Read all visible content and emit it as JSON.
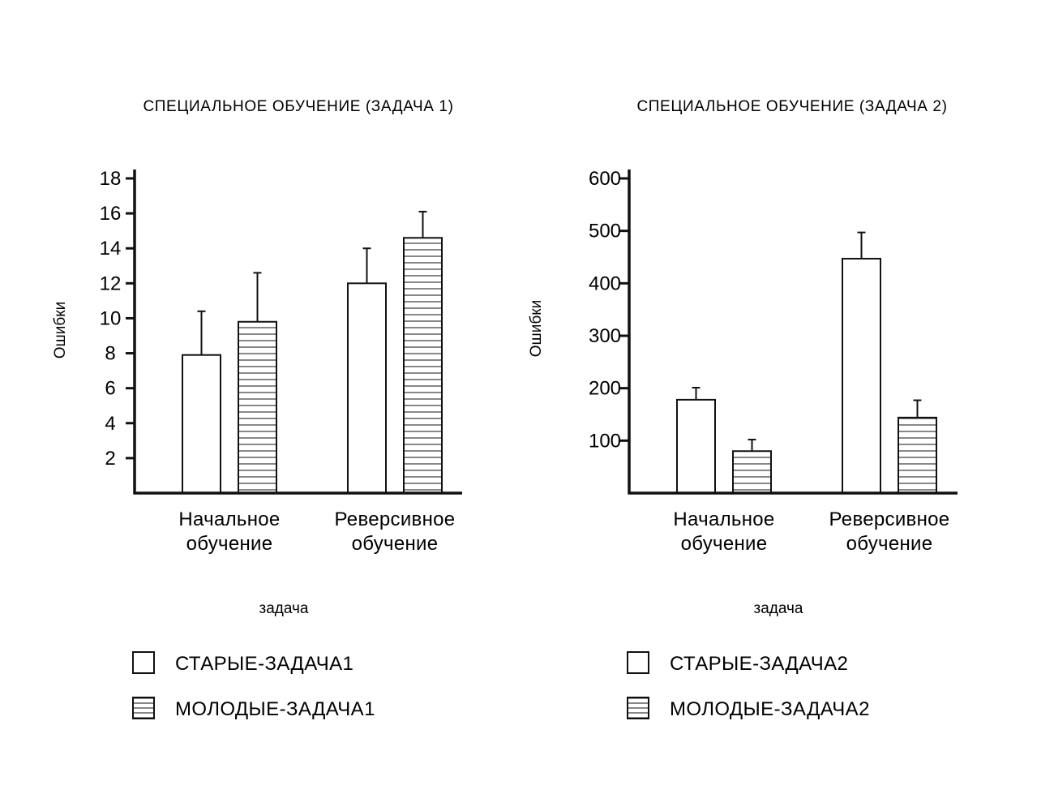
{
  "chart_data": [
    {
      "type": "bar",
      "title": "СПЕЦИАЛЬНОЕ ОБУЧЕНИЕ (ЗАДАЧА 1)",
      "ylabel": "Ошибки",
      "xlabel": "задача",
      "categories": [
        "Начальное обучение",
        "Реверсивное обучение"
      ],
      "category_lines": [
        [
          "Начальное",
          "обучение"
        ],
        [
          "Реверсивное",
          "обучение"
        ]
      ],
      "ylim": [
        0,
        18
      ],
      "yticks": [
        2,
        4,
        6,
        8,
        10,
        12,
        14,
        16,
        18
      ],
      "legend_position": "bottom-left",
      "series": [
        {
          "name": "СТАРЫЕ-ЗАДАЧА1",
          "pattern": "empty",
          "values": [
            7.9,
            12.0
          ],
          "errors": [
            2.5,
            2.0
          ]
        },
        {
          "name": "МОЛОДЫЕ-ЗАДАЧА1",
          "pattern": "horizontal-lines",
          "values": [
            9.8,
            14.6
          ],
          "errors": [
            2.8,
            1.5
          ]
        }
      ]
    },
    {
      "type": "bar",
      "title": "СПЕЦИАЛЬНОЕ ОБУЧЕНИЕ (ЗАДАЧА 2)",
      "ylabel": "Ошибки",
      "xlabel": "задача",
      "categories": [
        "Начальное обучение",
        "Реверсивное обучение"
      ],
      "category_lines": [
        [
          "Начальное",
          "обучение"
        ],
        [
          "Реверсивное",
          "обучение"
        ]
      ],
      "ylim": [
        0,
        600
      ],
      "yticks": [
        100,
        200,
        300,
        400,
        500,
        600
      ],
      "legend_position": "bottom-left",
      "series": [
        {
          "name": "СТАРЫЕ-ЗАДАЧА2",
          "pattern": "empty",
          "values": [
            178,
            447
          ],
          "errors": [
            23,
            50
          ]
        },
        {
          "name": "МОЛОДЫЕ-ЗАДАЧА2",
          "pattern": "horizontal-lines",
          "values": [
            80,
            144
          ],
          "errors": [
            22,
            33
          ]
        }
      ]
    }
  ],
  "colors": {
    "ink": "#111111",
    "background": "#ffffff"
  }
}
